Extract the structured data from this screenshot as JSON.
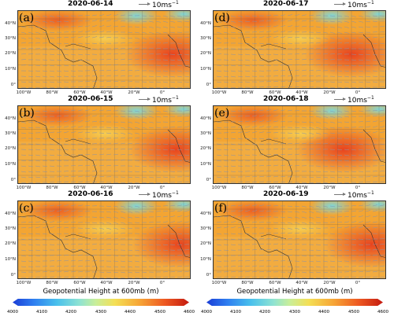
{
  "panels": [
    {
      "label": "(a)",
      "date": "2020-06-14"
    },
    {
      "label": "(d)",
      "date": "2020-06-17"
    },
    {
      "label": "(b)",
      "date": "2020-06-15"
    },
    {
      "label": "(e)",
      "date": "2020-06-18"
    },
    {
      "label": "(c)",
      "date": "2020-06-16"
    },
    {
      "label": "(f)",
      "date": "2020-06-19"
    }
  ],
  "wind_scale": "10ms",
  "wind_scale_sup": "−1",
  "lat_labels": [
    "40°N",
    "30°N",
    "20°N",
    "10°N",
    "0°"
  ],
  "lon_labels": [
    "100°W",
    "80°W",
    "60°W",
    "40°W",
    "20°W",
    "0°"
  ],
  "colorbar": {
    "title": "Geopotential Height at 600mb (m)",
    "ticks": [
      "4000",
      "4100",
      "4200",
      "4300",
      "4400",
      "4500",
      "4600"
    ]
  },
  "colors": {
    "high": "#e8431e",
    "mid": "#f3a533",
    "low": "#f6d75a",
    "trough": "#7fd6d8",
    "vectors": "#8a93a8"
  }
}
